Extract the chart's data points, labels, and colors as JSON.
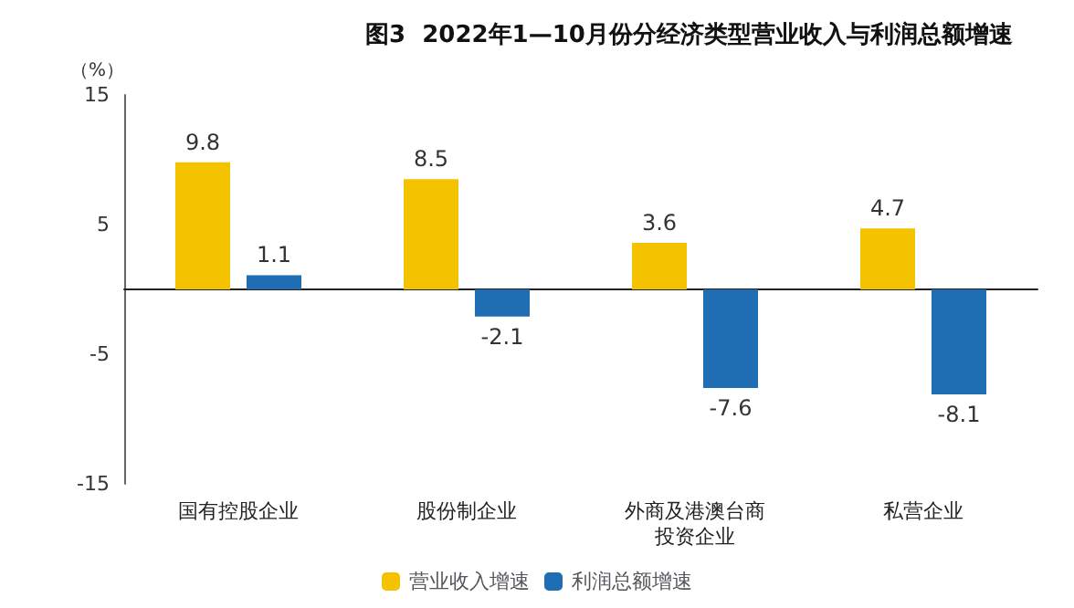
{
  "chart_data": {
    "type": "bar",
    "title": "图3  2022年1—10月份分经济类型营业收入与利润总额增速",
    "ylabel": "（%）",
    "categories": [
      "国有控股企业",
      "股份制企业",
      "外商及港澳台商投资企业",
      "私营企业"
    ],
    "series": [
      {
        "name": "营业收入增速",
        "color": "#f5c200",
        "values": [
          9.8,
          8.5,
          3.6,
          4.7
        ]
      },
      {
        "name": "利润总额增速",
        "color": "#1f6db3",
        "values": [
          1.1,
          -2.1,
          -7.6,
          -8.1
        ]
      }
    ],
    "ylim": [
      -15,
      15
    ],
    "yticks": [
      -15,
      -5,
      5,
      15
    ],
    "data_labels": true,
    "grid": false,
    "legend": "bottom"
  }
}
